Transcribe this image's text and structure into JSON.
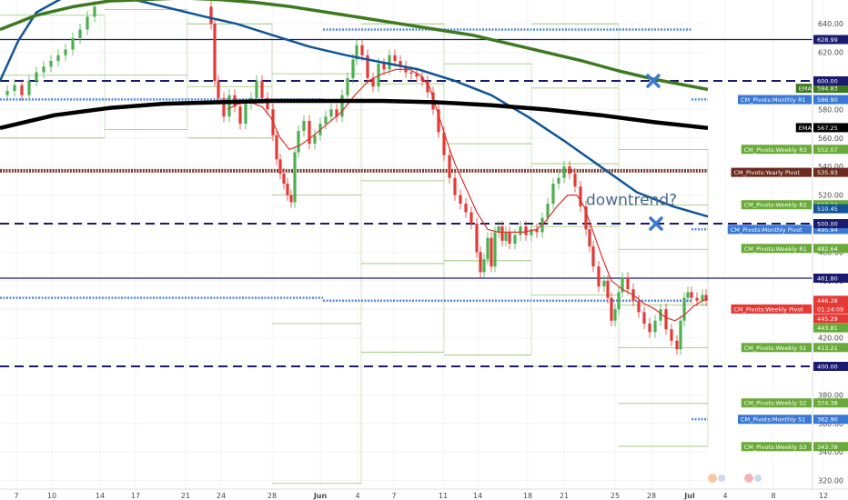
{
  "chart_data": {
    "type": "line",
    "title": "",
    "xlabel": "",
    "ylabel": "",
    "ylim": [
      312,
      655
    ],
    "x_ticks": [
      "7",
      "10",
      "14",
      "17",
      "21",
      "24",
      "28",
      "Jun",
      "4",
      "7",
      "11",
      "14",
      "18",
      "21",
      "25",
      "28",
      "Jul",
      "4",
      "8",
      "12"
    ],
    "y_ticks": [
      320,
      340,
      360,
      380,
      400,
      420,
      440,
      460,
      480,
      500,
      520,
      540,
      560,
      580,
      600,
      620,
      640
    ],
    "colors": {
      "ema_short": "#d9342b",
      "ema_long": "#115599",
      "ema_200": "#3d7a1f",
      "ema_black": "#000000",
      "weekly_pivot": "#6aaa3a",
      "monthly_pivot": "#3a78d4",
      "yearly_pivot": "#6b2a1c",
      "hline": "#1a1a6e",
      "bull_candle": "#4caf50",
      "bear_candle": "#e53935"
    },
    "horizontal_levels": [
      {
        "value": 628.99,
        "style": "solid",
        "label": "628.99"
      },
      {
        "value": 600.0,
        "style": "dashed",
        "label": "600.00"
      },
      {
        "value": 500.0,
        "style": "dashed",
        "label": "500.00"
      },
      {
        "value": 461.8,
        "style": "solid",
        "label": "461.80"
      },
      {
        "value": 400.0,
        "style": "dashed",
        "label": "400.00"
      }
    ],
    "price_tags": [
      {
        "name": "EMA",
        "value": "594.83",
        "color": "#3d7a1f",
        "y": 594.83
      },
      {
        "name": "CM_Pivots:Monthly R1",
        "value": "586.90",
        "color": "#3a78d4",
        "y": 586.9
      },
      {
        "name": "EMA",
        "value": "567.25",
        "color": "#000000",
        "y": 567.25
      },
      {
        "name": "CM_Pivots:Weekly R3",
        "value": "552.07",
        "color": "#6aaa3a",
        "y": 552.07
      },
      {
        "name": "CM_Pivots:Yearly Pivot",
        "value": "535.93",
        "color": "#6b2a1c",
        "y": 535.93
      },
      {
        "name": "CM_Pivots:Weekly R2",
        "value": "513.24",
        "color": "#6aaa3a",
        "y": 513.24
      },
      {
        "name": "",
        "value": "510.45",
        "color": "#115599",
        "y": 510.45
      },
      {
        "name": "CM_Pivots:Monthly Pivot",
        "value": "495.94",
        "color": "#3a78d4",
        "y": 495.94
      },
      {
        "name": "CM_Pivots:Weekly R1",
        "value": "482.64",
        "color": "#6aaa3a",
        "y": 482.64
      },
      {
        "name": "",
        "value": "446.28",
        "color": "#e53935",
        "y": 446.28
      },
      {
        "name": "CM_Pivots:Weekly Pivot",
        "value": "01:24:09",
        "color": "#e53935",
        "y": 440.2
      },
      {
        "name": "",
        "value": "445.29",
        "color": "#e53935",
        "y": 433.5
      },
      {
        "name": "",
        "value": "443.81",
        "color": "#6aaa3a",
        "y": 427.0
      },
      {
        "name": "CM_Pivots:Weekly S1",
        "value": "413.21",
        "color": "#6aaa3a",
        "y": 413.21
      },
      {
        "name": "CM_Pivots:Weekly S2",
        "value": "374.38",
        "color": "#6aaa3a",
        "y": 374.38
      },
      {
        "name": "CM_Pivots:Monthly S1",
        "value": "362.90",
        "color": "#3a78d4",
        "y": 362.9
      },
      {
        "name": "CM_Pivots:Weekly S3",
        "value": "343.78",
        "color": "#6aaa3a",
        "y": 343.78
      }
    ],
    "close_series": [
      [
        0,
        590
      ],
      [
        8,
        593
      ],
      [
        16,
        597
      ],
      [
        24,
        590
      ],
      [
        32,
        600
      ],
      [
        40,
        606
      ],
      [
        48,
        610
      ],
      [
        56,
        614
      ],
      [
        64,
        618
      ],
      [
        72,
        622
      ],
      [
        80,
        630
      ],
      [
        88,
        636
      ],
      [
        96,
        645
      ],
      [
        104,
        652
      ],
      [
        225,
        652
      ],
      [
        232,
        640
      ],
      [
        236,
        600
      ],
      [
        240,
        588
      ],
      [
        246,
        575
      ],
      [
        252,
        590
      ],
      [
        258,
        582
      ],
      [
        264,
        570
      ],
      [
        270,
        584
      ],
      [
        276,
        588
      ],
      [
        282,
        600
      ],
      [
        288,
        588
      ],
      [
        294,
        580
      ],
      [
        300,
        562
      ],
      [
        304,
        545
      ],
      [
        308,
        535
      ],
      [
        312,
        528
      ],
      [
        316,
        520
      ],
      [
        320,
        515
      ],
      [
        324,
        550
      ],
      [
        328,
        565
      ],
      [
        334,
        572
      ],
      [
        340,
        556
      ],
      [
        346,
        562
      ],
      [
        352,
        570
      ],
      [
        358,
        575
      ],
      [
        364,
        580
      ],
      [
        370,
        575
      ],
      [
        376,
        590
      ],
      [
        382,
        602
      ],
      [
        388,
        615
      ],
      [
        392,
        625
      ],
      [
        398,
        618
      ],
      [
        404,
        602
      ],
      [
        410,
        596
      ],
      [
        416,
        612
      ],
      [
        422,
        608
      ],
      [
        428,
        618
      ],
      [
        434,
        614
      ],
      [
        440,
        610
      ],
      [
        446,
        606
      ],
      [
        452,
        605
      ],
      [
        458,
        603
      ],
      [
        464,
        600
      ],
      [
        470,
        592
      ],
      [
        476,
        580
      ],
      [
        482,
        564
      ],
      [
        488,
        548
      ],
      [
        494,
        532
      ],
      [
        500,
        520
      ],
      [
        506,
        514
      ],
      [
        512,
        508
      ],
      [
        518,
        500
      ],
      [
        524,
        480
      ],
      [
        528,
        466
      ],
      [
        532,
        475
      ],
      [
        536,
        490
      ],
      [
        540,
        470
      ],
      [
        544,
        494
      ],
      [
        548,
        498
      ],
      [
        552,
        488
      ],
      [
        556,
        494
      ],
      [
        560,
        486
      ],
      [
        566,
        492
      ],
      [
        572,
        498
      ],
      [
        578,
        492
      ],
      [
        584,
        496
      ],
      [
        590,
        494
      ],
      [
        596,
        504
      ],
      [
        602,
        514
      ],
      [
        608,
        528
      ],
      [
        614,
        532
      ],
      [
        620,
        540
      ],
      [
        626,
        535
      ],
      [
        632,
        526
      ],
      [
        638,
        512
      ],
      [
        644,
        496
      ],
      [
        648,
        484
      ],
      [
        652,
        470
      ],
      [
        658,
        456
      ],
      [
        664,
        460
      ],
      [
        668,
        448
      ],
      [
        672,
        432
      ],
      [
        676,
        440
      ],
      [
        680,
        452
      ],
      [
        684,
        462
      ],
      [
        690,
        454
      ],
      [
        696,
        446
      ],
      [
        702,
        438
      ],
      [
        708,
        430
      ],
      [
        714,
        424
      ],
      [
        720,
        432
      ],
      [
        726,
        440
      ],
      [
        732,
        426
      ],
      [
        738,
        418
      ],
      [
        744,
        412
      ],
      [
        748,
        432
      ],
      [
        752,
        448
      ],
      [
        756,
        452
      ],
      [
        760,
        448
      ],
      [
        766,
        446
      ],
      [
        772,
        450
      ],
      [
        776,
        446
      ]
    ],
    "series": [
      {
        "key": "ema_short",
        "points": [
          [
            250,
            580
          ],
          [
            262,
            584
          ],
          [
            275,
            585
          ],
          [
            288,
            582
          ],
          [
            298,
            574
          ],
          [
            308,
            560
          ],
          [
            318,
            552
          ],
          [
            330,
            555
          ],
          [
            345,
            562
          ],
          [
            360,
            570
          ],
          [
            375,
            578
          ],
          [
            390,
            590
          ],
          [
            405,
            600
          ],
          [
            420,
            605
          ],
          [
            435,
            608
          ],
          [
            450,
            608
          ],
          [
            462,
            604
          ],
          [
            472,
            596
          ],
          [
            480,
            580
          ],
          [
            490,
            560
          ],
          [
            500,
            542
          ],
          [
            512,
            525
          ],
          [
            524,
            508
          ],
          [
            536,
            496
          ],
          [
            548,
            494
          ],
          [
            560,
            494
          ],
          [
            575,
            494
          ],
          [
            590,
            496
          ],
          [
            600,
            502
          ],
          [
            612,
            512
          ],
          [
            624,
            520
          ],
          [
            634,
            520
          ],
          [
            642,
            512
          ],
          [
            652,
            494
          ],
          [
            662,
            476
          ],
          [
            672,
            460
          ],
          [
            684,
            454
          ],
          [
            696,
            450
          ],
          [
            708,
            444
          ],
          [
            720,
            440
          ],
          [
            732,
            434
          ],
          [
            742,
            432
          ],
          [
            752,
            436
          ],
          [
            762,
            442
          ],
          [
            772,
            446
          ],
          [
            778,
            447
          ]
        ]
      },
      {
        "key": "ema_long",
        "points": [
          [
            0,
            600
          ],
          [
            20,
            628
          ],
          [
            40,
            648
          ],
          [
            60,
            655
          ],
          [
            80,
            662
          ],
          [
            100,
            664
          ],
          [
            140,
            658
          ],
          [
            180,
            652
          ],
          [
            225,
            645
          ],
          [
            260,
            640
          ],
          [
            300,
            632
          ],
          [
            340,
            624
          ],
          [
            380,
            618
          ],
          [
            420,
            613
          ],
          [
            460,
            608
          ],
          [
            500,
            600
          ],
          [
            540,
            590
          ],
          [
            580,
            575
          ],
          [
            620,
            558
          ],
          [
            660,
            540
          ],
          [
            700,
            522
          ],
          [
            740,
            512
          ],
          [
            778,
            505
          ]
        ]
      },
      {
        "key": "ema_200",
        "points": [
          [
            0,
            636
          ],
          [
            40,
            646
          ],
          [
            80,
            652
          ],
          [
            120,
            656
          ],
          [
            160,
            657
          ],
          [
            200,
            658
          ],
          [
            240,
            657
          ],
          [
            280,
            655
          ],
          [
            320,
            652
          ],
          [
            360,
            648
          ],
          [
            400,
            644
          ],
          [
            440,
            640
          ],
          [
            480,
            636
          ],
          [
            520,
            632
          ],
          [
            560,
            626
          ],
          [
            600,
            620
          ],
          [
            640,
            614
          ],
          [
            680,
            607
          ],
          [
            720,
            601
          ],
          [
            778,
            594
          ]
        ]
      },
      {
        "key": "ema_black",
        "points": [
          [
            0,
            567
          ],
          [
            60,
            576
          ],
          [
            120,
            581
          ],
          [
            180,
            584
          ],
          [
            240,
            585
          ],
          [
            300,
            586
          ],
          [
            360,
            586
          ],
          [
            420,
            586
          ],
          [
            480,
            585
          ],
          [
            540,
            583
          ],
          [
            600,
            580
          ],
          [
            660,
            576
          ],
          [
            720,
            571
          ],
          [
            778,
            567
          ]
        ]
      }
    ],
    "weekly_pivot_steps": [
      {
        "x0": 0,
        "x1": 115,
        "levels": [
          646,
          604,
          560
        ]
      },
      {
        "x0": 115,
        "x1": 206,
        "levels": [
          650,
          604,
          566
        ]
      },
      {
        "x0": 206,
        "x1": 299,
        "levels": [
          640,
          596,
          560
        ]
      },
      {
        "x0": 299,
        "x1": 397,
        "levels": [
          605,
          520,
          430,
          318
        ]
      },
      {
        "x0": 397,
        "x1": 488,
        "levels": [
          640,
          598,
          530,
          472,
          410
        ]
      },
      {
        "x0": 488,
        "x1": 584,
        "levels": [
          612,
          556,
          474,
          408
        ]
      },
      {
        "x0": 584,
        "x1": 680,
        "levels": [
          640,
          595,
          542,
          498,
          450,
          400
        ]
      },
      {
        "x0": 680,
        "x1": 778,
        "levels": [
          552,
          513,
          482,
          443,
          413,
          374,
          344
        ]
      }
    ],
    "monthly_pivot_steps": [
      {
        "x0": 0,
        "x1": 355,
        "levels": [
          587,
          448
        ]
      },
      {
        "x0": 355,
        "x1": 760,
        "levels": [
          636,
          446
        ]
      },
      {
        "x0": 760,
        "x1": 778,
        "levels": [
          587,
          496,
          363
        ]
      }
    ],
    "yearly_pivot": 537,
    "annotations": [
      {
        "text": "downtrend?",
        "x": 644,
        "y": 517
      },
      {
        "marker": "x",
        "x": 718,
        "y": 600
      },
      {
        "marker": "x",
        "x": 721,
        "y": 500
      }
    ]
  }
}
